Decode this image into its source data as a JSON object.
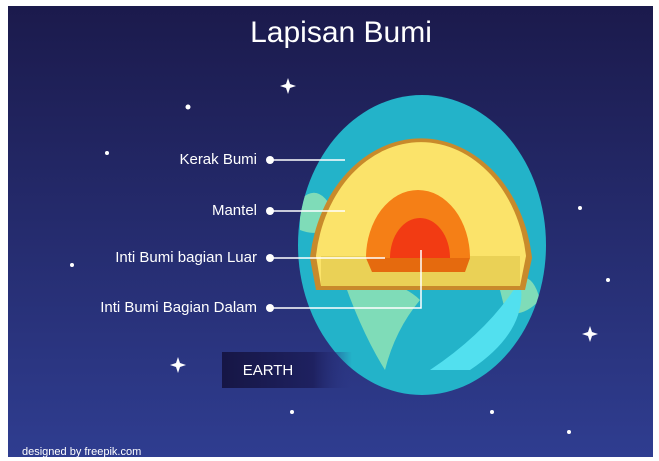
{
  "title": "Lapisan Bumi",
  "labels": [
    "Kerak Bumi",
    "Mantel",
    "Inti Bumi bagian Luar",
    "Inti Bumi Bagian Dalam"
  ],
  "badge": "EARTH",
  "credit": "designed by freepik.com"
}
